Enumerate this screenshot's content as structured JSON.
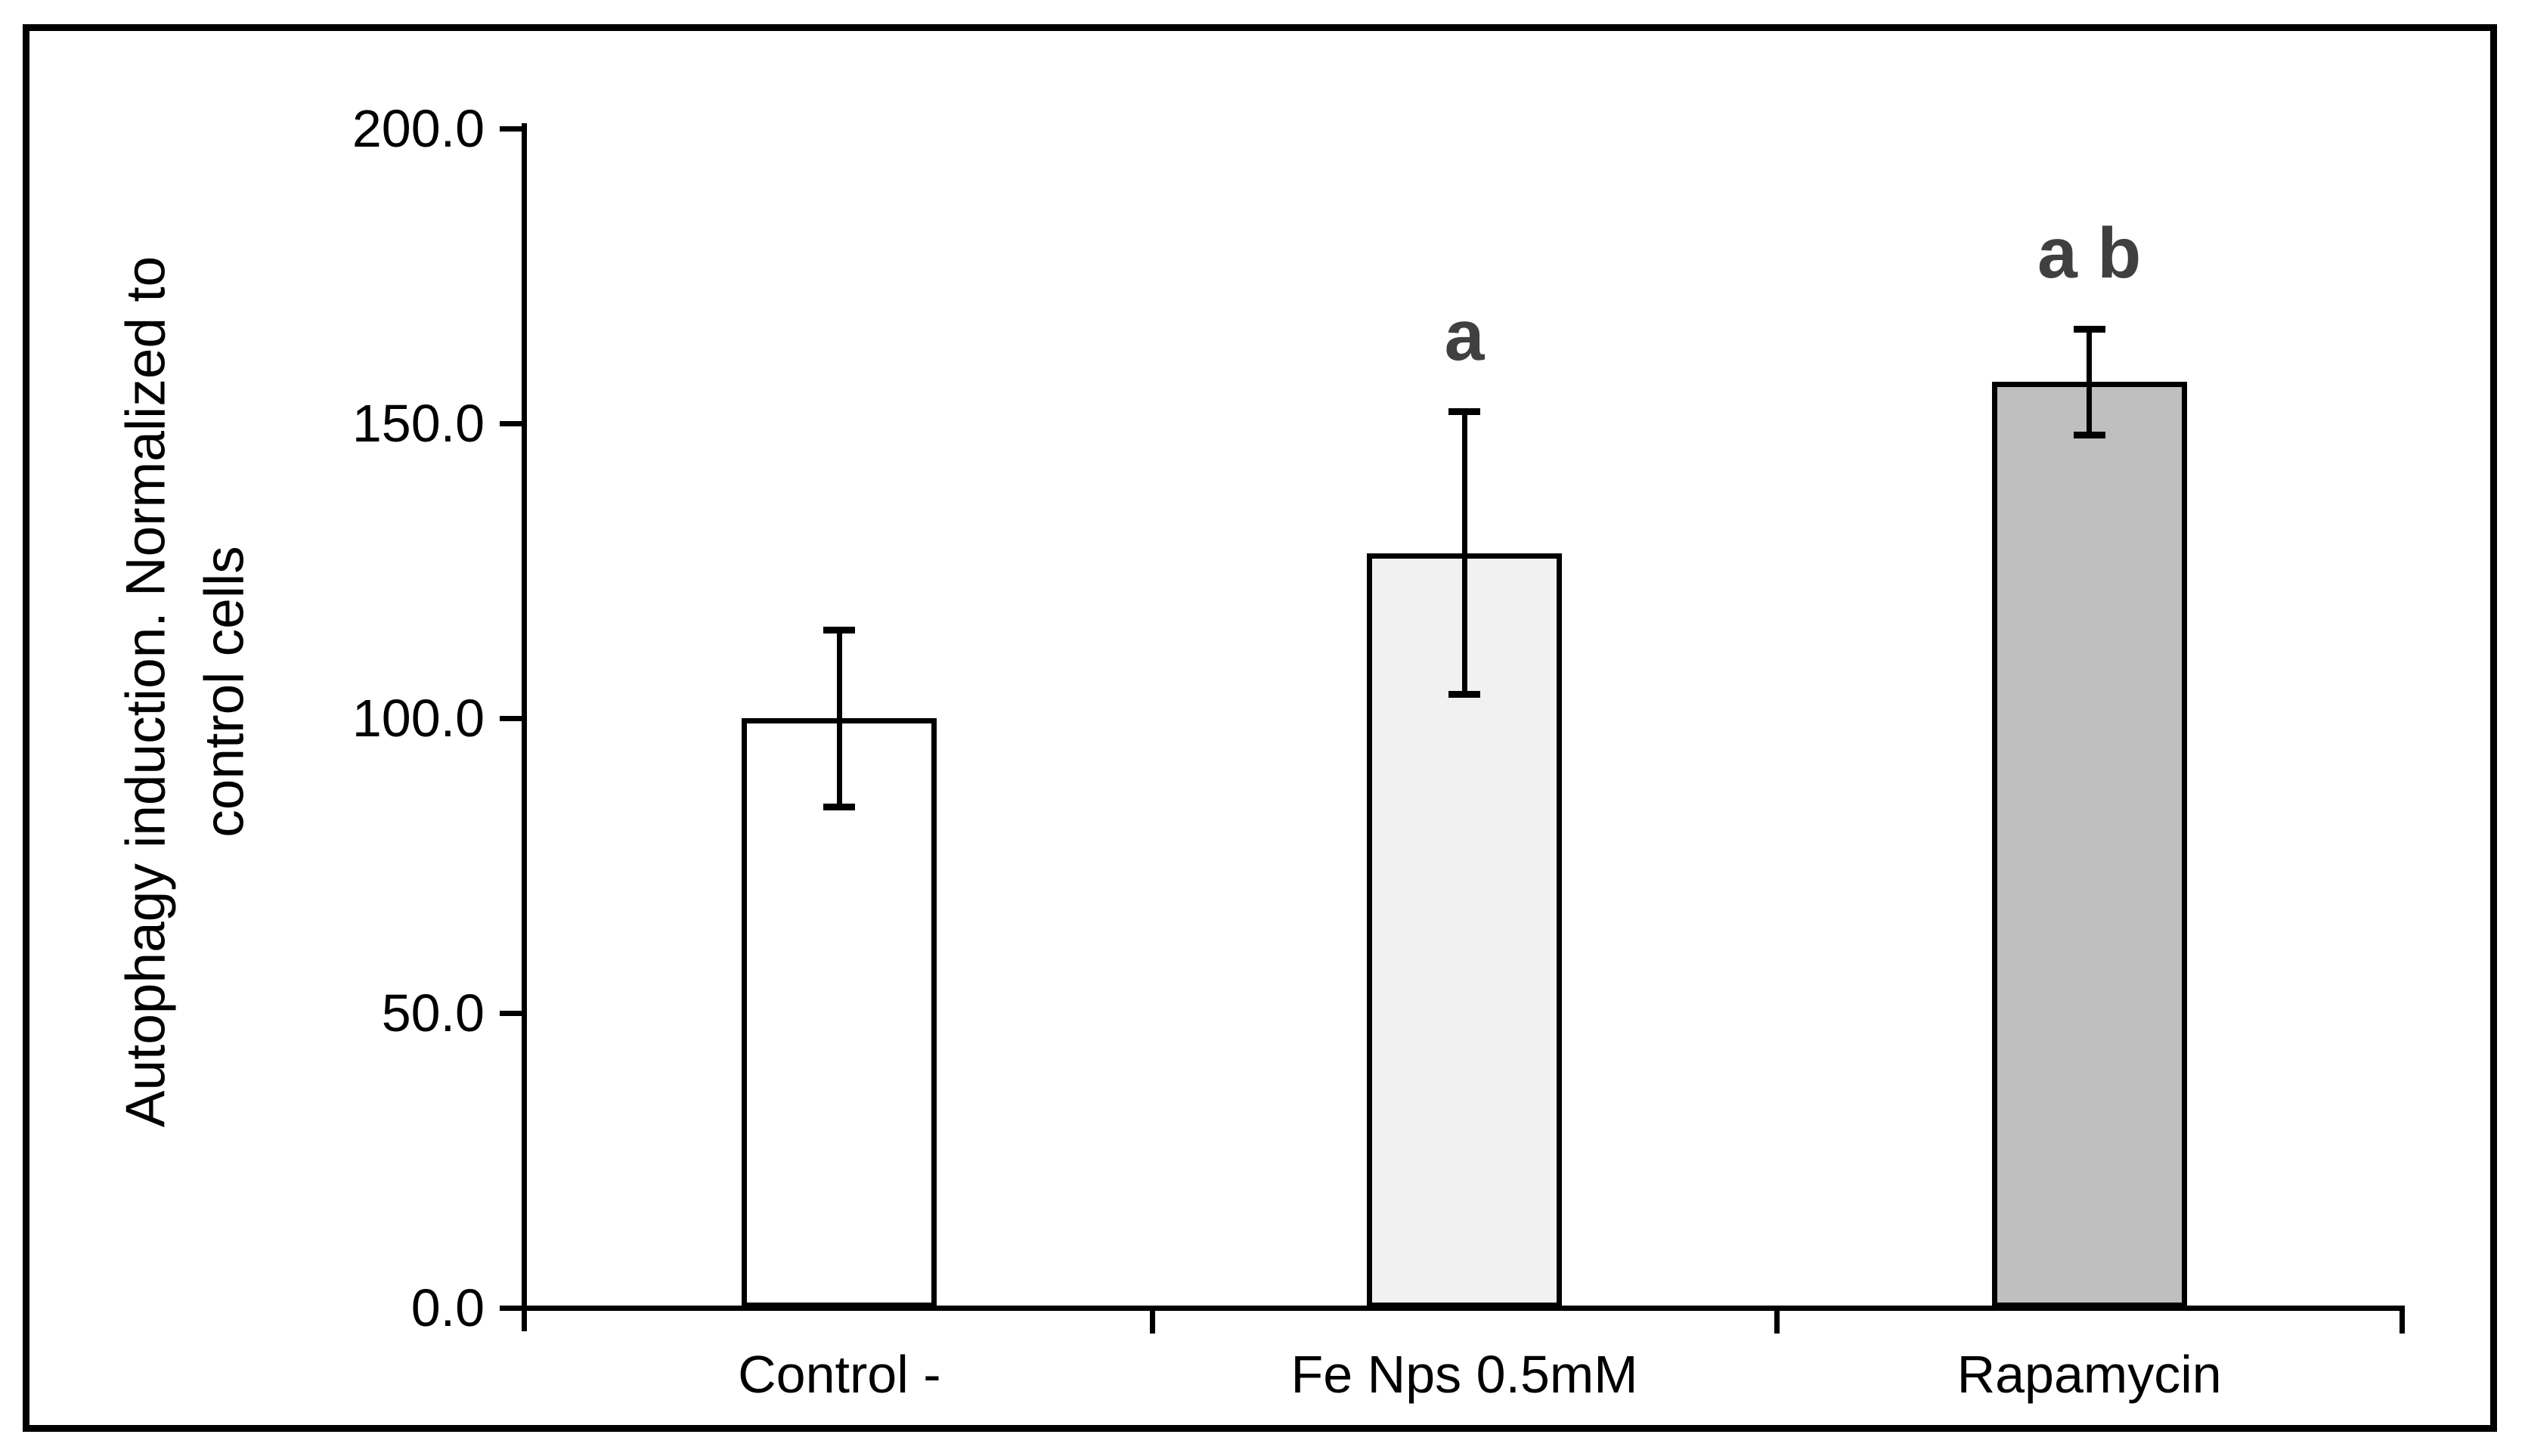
{
  "figure": {
    "y_axis_title_line1": "Autophagy induction. Normalized to",
    "y_axis_title_line2": "control cells"
  },
  "chart_data": {
    "type": "bar",
    "title": "",
    "xlabel": "",
    "ylabel": "Autophagy induction. Normalized to control cells",
    "ylim": [
      0,
      200
    ],
    "y_ticks": [
      0,
      50,
      100,
      150,
      200
    ],
    "y_tick_labels": [
      "0.0",
      "50.0",
      "100.0",
      "150.0",
      "200.0"
    ],
    "categories": [
      "Control -",
      "Fe Nps 0.5mM",
      "Rapamycin"
    ],
    "values": [
      100,
      128,
      157
    ],
    "error_bars": [
      15,
      24,
      9
    ],
    "significance_labels": [
      "",
      "a",
      "a b"
    ],
    "bar_fill_colors": [
      "#ffffff",
      "#f1f1f1",
      "#bfbfbf"
    ],
    "bar_border_color": "#000000",
    "axis_color": "#000000",
    "annotation_color": "#404040",
    "grid": false,
    "legend": false
  }
}
